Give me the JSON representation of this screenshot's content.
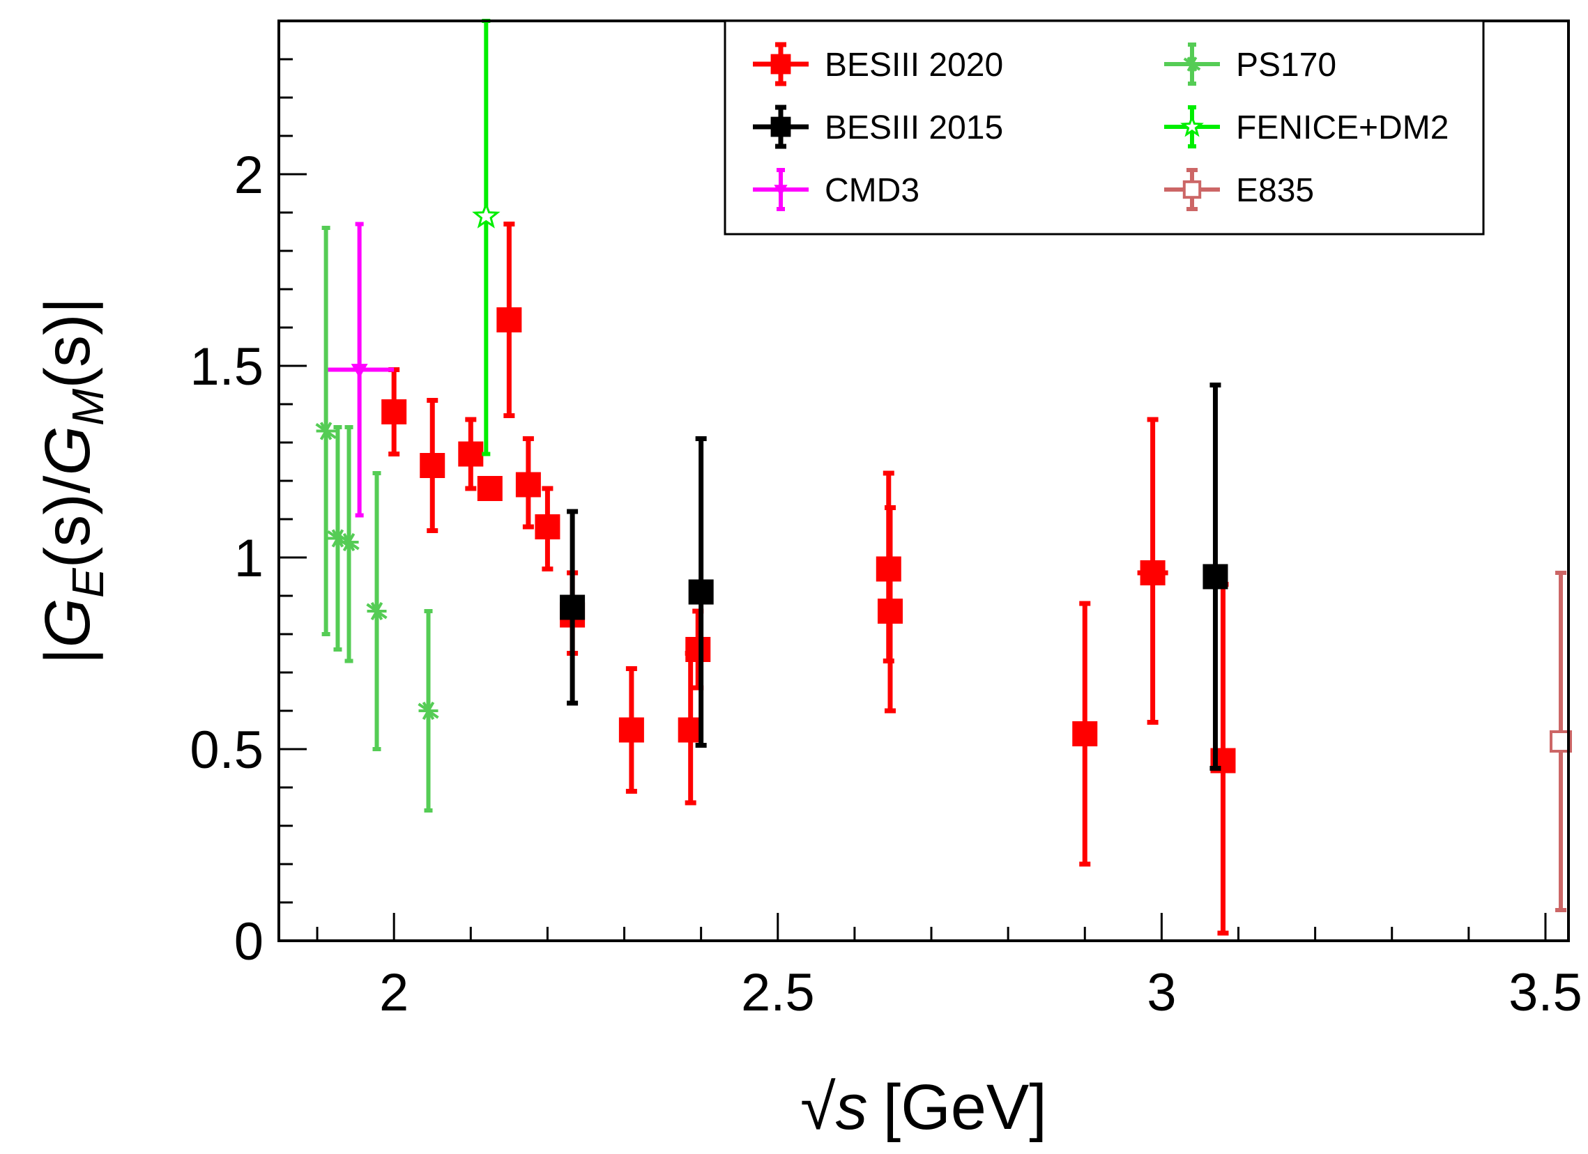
{
  "chart_data": {
    "type": "scatter",
    "title": "",
    "xlabel": "√s [GeV]",
    "xlabel_parts": {
      "root": "√",
      "var": "s",
      "unit": "[GeV]"
    },
    "ylabel": "|G_E(s)/G_M(s)|",
    "ylabel_parts": {
      "open": "|",
      "G1": "G",
      "sub1": "E",
      "mid1": "(s)/",
      "G2": "G",
      "sub2": "M",
      "end": "(s)|"
    },
    "xlim": [
      1.85,
      3.53
    ],
    "ylim": [
      0,
      2.4
    ],
    "xticks": [
      2,
      2.5,
      3,
      3.5
    ],
    "xtick_labels": [
      "2",
      "2.5",
      "3",
      "3.5"
    ],
    "yticks": [
      0,
      0.5,
      1,
      1.5,
      2
    ],
    "ytick_labels": [
      "0",
      "0.5",
      "1",
      "1.5",
      "2"
    ],
    "grid": false,
    "legend_position": "top-right",
    "series": [
      {
        "name": "BESIII 2020",
        "color": "#ff0000",
        "marker": "filled-square",
        "points": [
          {
            "x": 2.0,
            "y": 1.38,
            "ylo": 1.27,
            "yhi": 1.49,
            "xerr": 0
          },
          {
            "x": 2.05,
            "y": 1.24,
            "ylo": 1.07,
            "yhi": 1.41,
            "xerr": 0
          },
          {
            "x": 2.1,
            "y": 1.27,
            "ylo": 1.18,
            "yhi": 1.36,
            "xerr": 0
          },
          {
            "x": 2.125,
            "y": 1.18,
            "ylo": 1.18,
            "yhi": 1.18,
            "xerr": 0
          },
          {
            "x": 2.15,
            "y": 1.62,
            "ylo": 1.37,
            "yhi": 1.87,
            "xerr": 0
          },
          {
            "x": 2.175,
            "y": 1.19,
            "ylo": 1.08,
            "yhi": 1.31,
            "xerr": 0
          },
          {
            "x": 2.2,
            "y": 1.08,
            "ylo": 0.97,
            "yhi": 1.18,
            "xerr": 0
          },
          {
            "x": 2.2324,
            "y": 0.85,
            "ylo": 0.75,
            "yhi": 0.96,
            "xerr": 0
          },
          {
            "x": 2.3094,
            "y": 0.55,
            "ylo": 0.39,
            "yhi": 0.71,
            "xerr": 0
          },
          {
            "x": 2.3864,
            "y": 0.55,
            "ylo": 0.36,
            "yhi": 0.75,
            "xerr": 0
          },
          {
            "x": 2.396,
            "y": 0.76,
            "ylo": 0.66,
            "yhi": 0.86,
            "xerr": 0
          },
          {
            "x": 2.6444,
            "y": 0.97,
            "ylo": 0.73,
            "yhi": 1.22,
            "xerr": 0
          },
          {
            "x": 2.6464,
            "y": 0.86,
            "ylo": 0.6,
            "yhi": 1.13,
            "xerr": 0
          },
          {
            "x": 2.9,
            "y": 0.54,
            "ylo": 0.2,
            "yhi": 0.88,
            "xerr": 0
          },
          {
            "x": 2.9884,
            "y": 0.96,
            "ylo": 0.57,
            "yhi": 1.36,
            "xerr": 0.02
          },
          {
            "x": 3.08,
            "y": 0.47,
            "ylo": 0.02,
            "yhi": 0.93,
            "xerr": 0
          }
        ]
      },
      {
        "name": "BESIII 2015",
        "color": "#000000",
        "marker": "filled-square",
        "points": [
          {
            "x": 2.2324,
            "y": 0.87,
            "ylo": 0.62,
            "yhi": 1.12,
            "xerr": 0
          },
          {
            "x": 2.4,
            "y": 0.91,
            "ylo": 0.51,
            "yhi": 1.31,
            "xerr": 0
          },
          {
            "x": 3.07,
            "y": 0.95,
            "ylo": 0.45,
            "yhi": 1.45,
            "xerr": 0
          }
        ]
      },
      {
        "name": "CMD3",
        "color": "#ff00ff",
        "marker": "triangle-down",
        "points": [
          {
            "x": 1.955,
            "y": 1.49,
            "ylo": 1.11,
            "yhi": 1.87,
            "xerr": 0.045
          }
        ]
      },
      {
        "name": "PS170",
        "color": "#55cc55",
        "marker": "star",
        "points": [
          {
            "x": 1.9114,
            "y": 1.33,
            "ylo": 0.8,
            "yhi": 1.86,
            "xerr": 0
          },
          {
            "x": 1.9267,
            "y": 1.05,
            "ylo": 0.76,
            "yhi": 1.34,
            "xerr": 0
          },
          {
            "x": 1.9413,
            "y": 1.04,
            "ylo": 0.73,
            "yhi": 1.34,
            "xerr": 0
          },
          {
            "x": 1.9776,
            "y": 0.86,
            "ylo": 0.5,
            "yhi": 1.22,
            "xerr": 0
          },
          {
            "x": 2.0448,
            "y": 0.6,
            "ylo": 0.34,
            "yhi": 0.86,
            "xerr": 0
          }
        ]
      },
      {
        "name": "FENICE+DM2",
        "color": "#00ee00",
        "marker": "open-star",
        "points": [
          {
            "x": 2.12,
            "y": 1.89,
            "ylo": 1.27,
            "yhi": 2.4,
            "xerr": 0
          }
        ]
      },
      {
        "name": "E835",
        "color": "#cc6666",
        "marker": "open-square",
        "points": [
          {
            "x": 3.52,
            "y": 0.52,
            "ylo": 0.08,
            "yhi": 0.96,
            "xerr": 0
          }
        ]
      }
    ],
    "legend": [
      {
        "label": "BESIII 2020",
        "color": "#ff0000",
        "marker": "filled-square"
      },
      {
        "label": "PS170",
        "color": "#55cc55",
        "marker": "star"
      },
      {
        "label": "BESIII 2015",
        "color": "#000000",
        "marker": "filled-square"
      },
      {
        "label": "FENICE+DM2",
        "color": "#00ee00",
        "marker": "open-star"
      },
      {
        "label": "CMD3",
        "color": "#ff00ff",
        "marker": "triangle-down"
      },
      {
        "label": "E835",
        "color": "#cc6666",
        "marker": "open-square"
      }
    ]
  }
}
